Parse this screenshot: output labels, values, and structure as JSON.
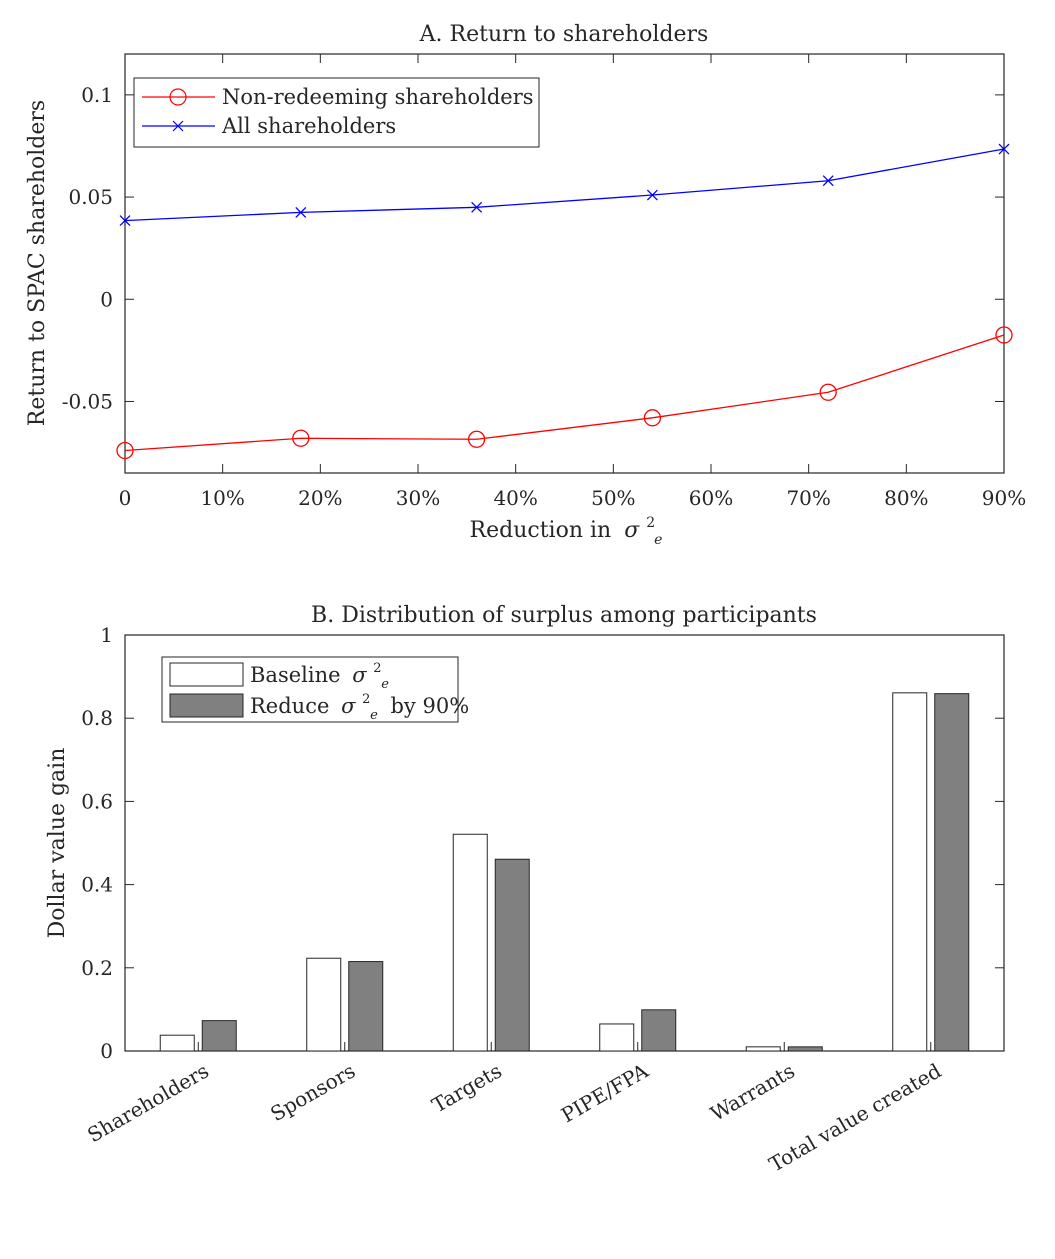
{
  "chart_data": [
    {
      "type": "line",
      "title": "A. Return to shareholders",
      "xlabel": "Reduction in",
      "xlabel_symbol": "σ",
      "xlabel_sup": "2",
      "xlabel_sub": "e",
      "ylabel": "Return to SPAC shareholders",
      "x": [
        0,
        0.18,
        0.36,
        0.54,
        0.72,
        0.9
      ],
      "xlim": [
        0,
        0.9
      ],
      "ylim": [
        -0.085,
        0.12
      ],
      "xticks": [
        0,
        0.1,
        0.2,
        0.3,
        0.4,
        0.5,
        0.6,
        0.7,
        0.8,
        0.9
      ],
      "xtick_labels": [
        "0",
        "10%",
        "20%",
        "30%",
        "40%",
        "50%",
        "60%",
        "70%",
        "80%",
        "90%"
      ],
      "yticks": [
        -0.05,
        0,
        0.05,
        0.1
      ],
      "ytick_labels": [
        "-0.05",
        "0",
        "0.05",
        "0.1"
      ],
      "legend_position": "top-left",
      "series": [
        {
          "name": "Non-redeeming shareholders",
          "marker": "circle",
          "color": "#ff0000",
          "values": [
            -0.074,
            -0.068,
            -0.0685,
            -0.058,
            -0.0455,
            -0.0175
          ]
        },
        {
          "name": "All shareholders",
          "marker": "x",
          "color": "#0000ff",
          "values": [
            0.0385,
            0.0425,
            0.045,
            0.051,
            0.058,
            0.0735
          ]
        }
      ]
    },
    {
      "type": "bar",
      "title": "B. Distribution of surplus among participants",
      "ylabel": "Dollar value gain",
      "categories": [
        "Shareholders",
        "Sponsors",
        "Targets",
        "PIPE/FPA",
        "Warrants",
        "Total value created"
      ],
      "ylim": [
        0,
        1
      ],
      "yticks": [
        0,
        0.2,
        0.4,
        0.6,
        0.8,
        1
      ],
      "ytick_labels": [
        "0",
        "0.2",
        "0.4",
        "0.6",
        "0.8",
        "1"
      ],
      "legend_position": "top-left",
      "series": [
        {
          "name_prefix": "Baseline",
          "name_symbol": "σ",
          "name_sup": "2",
          "name_sub": "e",
          "name_suffix": "",
          "color": "#ffffff",
          "values": [
            0.038,
            0.223,
            0.521,
            0.065,
            0.01,
            0.861
          ]
        },
        {
          "name_prefix": "Reduce",
          "name_symbol": "σ",
          "name_sup": "2",
          "name_sub": "e",
          "name_suffix": "by 90%",
          "color": "#808080",
          "values": [
            0.073,
            0.215,
            0.461,
            0.099,
            0.01,
            0.859
          ]
        }
      ]
    }
  ]
}
